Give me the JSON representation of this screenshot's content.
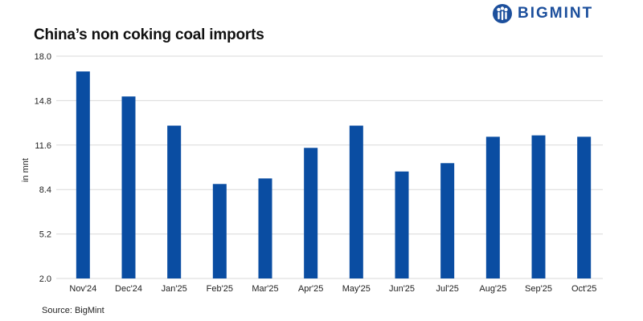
{
  "header": {
    "title": "China’s non coking coal imports",
    "brand": "BIGMINT",
    "brand_color": "#1c4f9c"
  },
  "footer": {
    "source": "Source: BigMint"
  },
  "chart_data": {
    "type": "bar",
    "title": "China’s non coking coal imports",
    "xlabel": "",
    "ylabel": "in mnt",
    "categories": [
      "Nov'24",
      "Dec'24",
      "Jan'25",
      "Feb'25",
      "Mar'25",
      "Apr'25",
      "May'25",
      "Jun'25",
      "Jul'25",
      "Aug'25",
      "Sep'25",
      "Oct'25"
    ],
    "values": [
      16.9,
      15.1,
      13.0,
      8.8,
      9.2,
      11.4,
      13.0,
      9.7,
      10.3,
      12.2,
      12.3,
      12.2
    ],
    "ylim": [
      2.0,
      18.0
    ],
    "yticks": [
      "2.0",
      "5.2",
      "8.4",
      "11.6",
      "14.8",
      "18.0"
    ],
    "grid": true,
    "bar_color": "#0a4da2",
    "grid_color": "#d9d9d9"
  }
}
